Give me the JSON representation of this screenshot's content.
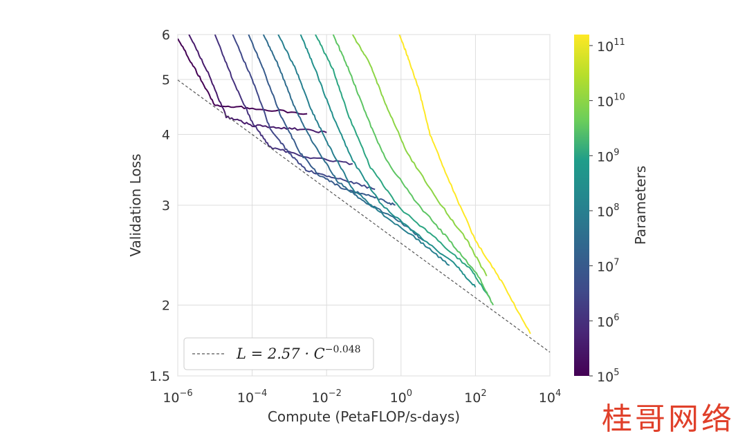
{
  "chart_data": {
    "type": "line",
    "title": "",
    "xlabel": "Compute (PetaFLOP/s-days)",
    "ylabel": "Validation Loss",
    "x_scale": "log",
    "y_scale": "log",
    "xlim": [
      1e-06,
      10000
    ],
    "ylim": [
      1.5,
      6
    ],
    "grid": true,
    "x_ticks": [
      {
        "value": 1e-06,
        "base": "10",
        "exp": "−6"
      },
      {
        "value": 0.0001,
        "base": "10",
        "exp": "−4"
      },
      {
        "value": 0.01,
        "base": "10",
        "exp": "−2"
      },
      {
        "value": 1,
        "base": "10",
        "exp": "0"
      },
      {
        "value": 100,
        "base": "10",
        "exp": "2"
      },
      {
        "value": 10000,
        "base": "10",
        "exp": "4"
      }
    ],
    "y_ticks": [
      {
        "value": 1.5,
        "label": "1.5"
      },
      {
        "value": 2,
        "label": "2"
      },
      {
        "value": 3,
        "label": "3"
      },
      {
        "value": 4,
        "label": "4"
      },
      {
        "value": 5,
        "label": "5"
      },
      {
        "value": 6,
        "label": "6"
      }
    ],
    "frontier": {
      "formula_label": "L = 2.57 · C",
      "formula_exp": "−0.048",
      "a": 2.57,
      "b": -0.048,
      "color": "#555555",
      "dashed": true
    },
    "legend_position": "lower-left",
    "colorbar": {
      "label": "Parameters",
      "colormap": "viridis",
      "min_exp": 5,
      "max_exp": 11.2,
      "ticks": [
        {
          "base": "10",
          "exp": "5",
          "value_exp": 5
        },
        {
          "base": "10",
          "exp": "6",
          "value_exp": 6
        },
        {
          "base": "10",
          "exp": "7",
          "value_exp": 7
        },
        {
          "base": "10",
          "exp": "8",
          "value_exp": 8
        },
        {
          "base": "10",
          "exp": "9",
          "value_exp": 9
        },
        {
          "base": "10",
          "exp": "10",
          "value_exp": 10
        },
        {
          "base": "10",
          "exp": "11",
          "value_exp": 11
        }
      ]
    },
    "series": [
      {
        "param_exp": 5.0,
        "points": [
          [
            1e-06,
            5.9
          ],
          [
            3e-06,
            5.2
          ],
          [
            1e-05,
            4.5
          ],
          [
            0.0001,
            4.45
          ],
          [
            0.003,
            4.35
          ]
        ]
      },
      {
        "param_exp": 5.5,
        "points": [
          [
            2e-06,
            6.0
          ],
          [
            6e-06,
            5.2
          ],
          [
            2e-05,
            4.3
          ],
          [
            0.0001,
            4.15
          ],
          [
            0.001,
            4.1
          ],
          [
            0.01,
            4.03
          ]
        ]
      },
      {
        "param_exp": 6.0,
        "points": [
          [
            1e-05,
            6.0
          ],
          [
            3e-05,
            5.0
          ],
          [
            0.0001,
            4.2
          ],
          [
            0.0003,
            3.8
          ],
          [
            0.003,
            3.65
          ],
          [
            0.05,
            3.55
          ]
        ]
      },
      {
        "param_exp": 6.5,
        "points": [
          [
            3e-05,
            6.0
          ],
          [
            0.0001,
            5.0
          ],
          [
            0.0003,
            4.1
          ],
          [
            0.001,
            3.7
          ],
          [
            0.003,
            3.45
          ],
          [
            0.02,
            3.35
          ],
          [
            0.2,
            3.2
          ]
        ]
      },
      {
        "param_exp": 7.0,
        "points": [
          [
            8e-05,
            6.0
          ],
          [
            0.0002,
            5.2
          ],
          [
            0.0006,
            4.3
          ],
          [
            0.002,
            3.7
          ],
          [
            0.006,
            3.4
          ],
          [
            0.03,
            3.2
          ],
          [
            0.2,
            3.1
          ],
          [
            0.7,
            3.0
          ]
        ]
      },
      {
        "param_exp": 7.5,
        "points": [
          [
            0.0002,
            6.0
          ],
          [
            0.0005,
            5.3
          ],
          [
            0.0015,
            4.4
          ],
          [
            0.005,
            3.8
          ],
          [
            0.02,
            3.3
          ],
          [
            0.1,
            3.05
          ],
          [
            1,
            2.8
          ],
          [
            4,
            2.6
          ]
        ]
      },
      {
        "param_exp": 8.0,
        "points": [
          [
            0.0005,
            6.0
          ],
          [
            0.0015,
            5.2
          ],
          [
            0.004,
            4.4
          ],
          [
            0.012,
            3.8
          ],
          [
            0.05,
            3.2
          ],
          [
            0.3,
            2.9
          ],
          [
            3,
            2.6
          ],
          [
            20,
            2.35
          ]
        ]
      },
      {
        "param_exp": 8.5,
        "points": [
          [
            0.002,
            6.0
          ],
          [
            0.005,
            5.2
          ],
          [
            0.015,
            4.3
          ],
          [
            0.05,
            3.6
          ],
          [
            0.3,
            3.0
          ],
          [
            3,
            2.65
          ],
          [
            30,
            2.35
          ],
          [
            100,
            2.15
          ]
        ]
      },
      {
        "param_exp": 9.0,
        "points": [
          [
            0.005,
            6.0
          ],
          [
            0.015,
            5.2
          ],
          [
            0.04,
            4.3
          ],
          [
            0.15,
            3.5
          ],
          [
            1,
            2.95
          ],
          [
            10,
            2.6
          ],
          [
            80,
            2.3
          ],
          [
            250,
            2.05
          ]
        ]
      },
      {
        "param_exp": 9.5,
        "points": [
          [
            0.015,
            6.0
          ],
          [
            0.04,
            5.2
          ],
          [
            0.12,
            4.3
          ],
          [
            0.4,
            3.6
          ],
          [
            3,
            3.0
          ],
          [
            20,
            2.6
          ],
          [
            120,
            2.25
          ],
          [
            300,
            2.0
          ]
        ]
      },
      {
        "param_exp": 10.0,
        "points": [
          [
            0.05,
            6.0
          ],
          [
            0.15,
            5.3
          ],
          [
            0.4,
            4.5
          ],
          [
            1.5,
            3.7
          ],
          [
            10,
            3.05
          ],
          [
            60,
            2.6
          ],
          [
            200,
            2.25
          ]
        ]
      },
      {
        "param_exp": 11.2,
        "points": [
          [
            0.9,
            6.0
          ],
          [
            1.5,
            5.5
          ],
          [
            3,
            4.8
          ],
          [
            6,
            4.0
          ],
          [
            20,
            3.3
          ],
          [
            100,
            2.6
          ],
          [
            500,
            2.2
          ],
          [
            3000,
            1.78
          ]
        ]
      }
    ]
  },
  "watermark": "桂哥网络"
}
